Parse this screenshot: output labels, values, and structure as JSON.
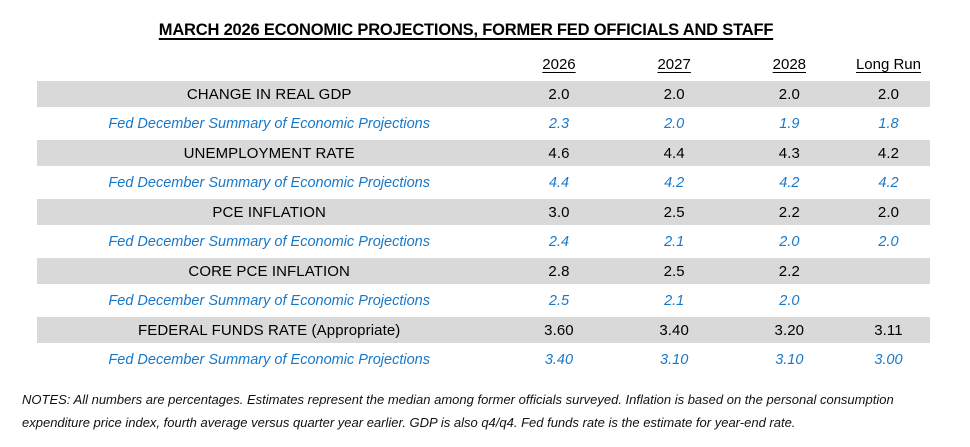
{
  "page": {
    "title": "MARCH 2026 ECONOMIC PROJECTIONS, FORMER FED OFFICIALS AND STAFF"
  },
  "colors": {
    "fed_blue": "#1878c8",
    "row_band_gray": "#d9d9d9",
    "text": "#000000"
  },
  "table": {
    "columns": [
      "",
      "2026",
      "2027",
      "2028",
      "Long Run"
    ],
    "rows": [
      {
        "type": "main",
        "label": "CHANGE IN REAL GDP",
        "values": [
          "2.0",
          "2.0",
          "2.0",
          "2.0"
        ]
      },
      {
        "type": "fed",
        "label": "Fed December Summary of Economic Projections",
        "values": [
          "2.3",
          "2.0",
          "1.9",
          "1.8"
        ]
      },
      {
        "type": "main",
        "label": "UNEMPLOYMENT RATE",
        "values": [
          "4.6",
          "4.4",
          "4.3",
          "4.2"
        ]
      },
      {
        "type": "fed",
        "label": "Fed December Summary of Economic Projections",
        "values": [
          "4.4",
          "4.2",
          "4.2",
          "4.2"
        ]
      },
      {
        "type": "main",
        "label": "PCE INFLATION",
        "values": [
          "3.0",
          "2.5",
          "2.2",
          "2.0"
        ]
      },
      {
        "type": "fed",
        "label": "Fed December Summary of Economic Projections",
        "values": [
          "2.4",
          "2.1",
          "2.0",
          "2.0"
        ]
      },
      {
        "type": "main",
        "label": "CORE PCE INFLATION",
        "values": [
          "2.8",
          "2.5",
          "2.2",
          ""
        ]
      },
      {
        "type": "fed",
        "label": "Fed December Summary of Economic Projections",
        "values": [
          "2.5",
          "2.1",
          "2.0",
          ""
        ]
      },
      {
        "type": "main",
        "label": "FEDERAL FUNDS RATE (Appropriate)",
        "values": [
          "3.60",
          "3.40",
          "3.20",
          "3.11"
        ]
      },
      {
        "type": "fed",
        "label": "Fed December Summary of Economic Projections",
        "values": [
          "3.40",
          "3.10",
          "3.10",
          "3.00"
        ]
      }
    ]
  },
  "notes": {
    "line1": "NOTES: All numbers are percentages. Estimates represent the median among former officials surveyed. Inflation is based on the personal consumption",
    "line2": "expenditure price index, fourth average versus quarter year earlier. GDP is also q4/q4. Fed funds rate is the estimate for year-end rate."
  }
}
